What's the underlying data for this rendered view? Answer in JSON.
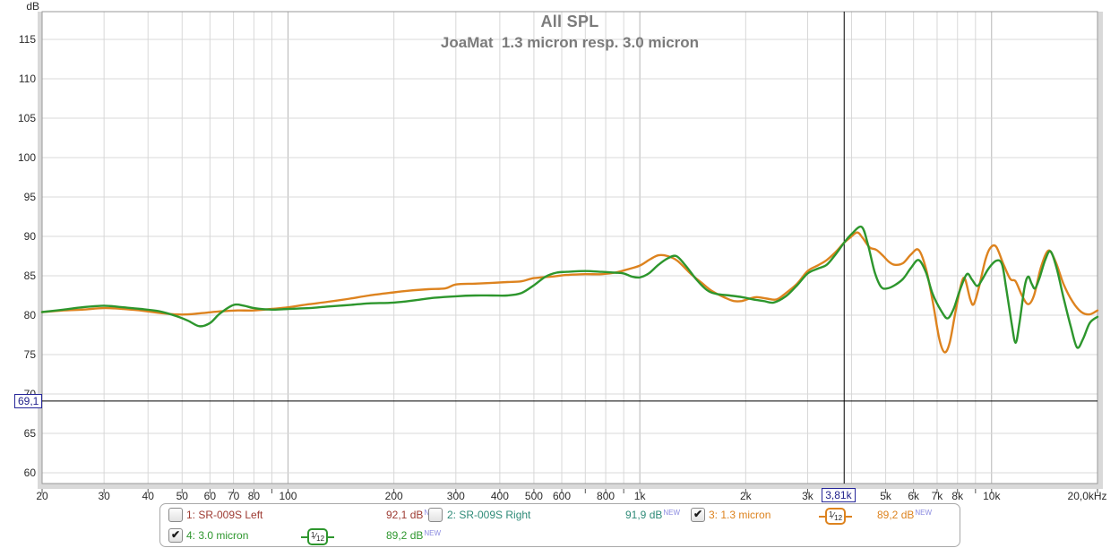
{
  "ui": {
    "check_glyph": "✔",
    "fraction_slash": "⁄"
  },
  "title": "All SPL",
  "subtitle": "JoaMat  1.3 micron resp. 3.0 micron",
  "y_axis_unit": "dB",
  "cursor_readout": {
    "freq_label": "3,81k",
    "db_label": "69,1"
  },
  "legend": {
    "items": [
      {
        "name": "1: SR-009S Left",
        "value": "92,1 dB",
        "flag": "NEW",
        "checked": false,
        "color": "#9d3a32"
      },
      {
        "name": "2: SR-009S Right",
        "value": "91,9 dB",
        "flag": "NEW",
        "checked": false,
        "color": "#2f8b78"
      },
      {
        "name": "3: 1.3 micron",
        "value": "89,2 dB",
        "flag": "NEW",
        "checked": true,
        "color": "#dd831f",
        "smooth_num": "1",
        "smooth_den": "12"
      },
      {
        "name": "4: 3.0 micron",
        "value": "89,2 dB",
        "flag": "NEW",
        "checked": true,
        "color": "#2d962d",
        "smooth_num": "1",
        "smooth_den": "12"
      }
    ]
  },
  "chart_data": {
    "type": "line",
    "title": "All SPL",
    "subtitle": "JoaMat  1.3 micron resp. 3.0 micron",
    "x_axis": {
      "scale": "log",
      "unit": "Hz",
      "min": 20,
      "max": 20000,
      "grid": [
        20,
        30,
        40,
        50,
        60,
        70,
        80,
        90,
        100,
        200,
        300,
        400,
        500,
        600,
        700,
        800,
        900,
        1000,
        2000,
        3000,
        4000,
        5000,
        6000,
        7000,
        8000,
        9000,
        10000,
        20000
      ],
      "ticks": [
        {
          "f": 20,
          "label": "20"
        },
        {
          "f": 30,
          "label": "30"
        },
        {
          "f": 40,
          "label": "40"
        },
        {
          "f": 50,
          "label": "50"
        },
        {
          "f": 60,
          "label": "60"
        },
        {
          "f": 70,
          "label": "70"
        },
        {
          "f": 80,
          "label": "80"
        },
        {
          "f": 100,
          "label": "100"
        },
        {
          "f": 200,
          "label": "200"
        },
        {
          "f": 300,
          "label": "300"
        },
        {
          "f": 400,
          "label": "400"
        },
        {
          "f": 500,
          "label": "500"
        },
        {
          "f": 600,
          "label": "600"
        },
        {
          "f": 800,
          "label": "800"
        },
        {
          "f": 1000,
          "label": "1k"
        },
        {
          "f": 2000,
          "label": "2k"
        },
        {
          "f": 3000,
          "label": "3k"
        },
        {
          "f": 5000,
          "label": "5k"
        },
        {
          "f": 6000,
          "label": "6k"
        },
        {
          "f": 7000,
          "label": "7k"
        },
        {
          "f": 8000,
          "label": "8k"
        },
        {
          "f": 10000,
          "label": "10k"
        },
        {
          "f": 20000,
          "label": "20,0kHz",
          "align": "end"
        }
      ]
    },
    "y_axis": {
      "label": "dB",
      "min": 60,
      "max": 115,
      "step": 5,
      "ticks": [
        115,
        110,
        105,
        100,
        95,
        90,
        85,
        80,
        75,
        70,
        65,
        60
      ],
      "grid": true
    },
    "cursor": {
      "freq": 3810,
      "freq_label": "3,81k",
      "db": 69.1,
      "db_label": "69,1"
    },
    "legend_position": "bottom",
    "hidden_series": [
      {
        "name": "1: SR-009S Left",
        "level": "92,1 dB",
        "checked": false
      },
      {
        "name": "2: SR-009S Right",
        "level": "91,9 dB",
        "checked": false
      }
    ],
    "series": [
      {
        "name": "3: 1.3 micron",
        "color": "#dd831f",
        "smoothing": "1/12",
        "level": "89,2 dB",
        "points": [
          [
            20,
            80.4
          ],
          [
            23,
            80.6
          ],
          [
            26,
            80.7
          ],
          [
            30,
            80.9
          ],
          [
            34,
            80.8
          ],
          [
            38,
            80.6
          ],
          [
            43,
            80.3
          ],
          [
            48,
            80.1
          ],
          [
            52,
            80.1
          ],
          [
            58,
            80.3
          ],
          [
            65,
            80.5
          ],
          [
            72,
            80.6
          ],
          [
            80,
            80.6
          ],
          [
            90,
            80.8
          ],
          [
            100,
            81.0
          ],
          [
            115,
            81.4
          ],
          [
            130,
            81.7
          ],
          [
            150,
            82.1
          ],
          [
            170,
            82.5
          ],
          [
            200,
            82.9
          ],
          [
            220,
            83.1
          ],
          [
            250,
            83.3
          ],
          [
            280,
            83.4
          ],
          [
            300,
            83.9
          ],
          [
            340,
            84.0
          ],
          [
            380,
            84.1
          ],
          [
            420,
            84.2
          ],
          [
            460,
            84.3
          ],
          [
            500,
            84.7
          ],
          [
            560,
            84.9
          ],
          [
            620,
            85.1
          ],
          [
            700,
            85.2
          ],
          [
            780,
            85.2
          ],
          [
            850,
            85.4
          ],
          [
            920,
            85.8
          ],
          [
            1000,
            86.3
          ],
          [
            1070,
            87.1
          ],
          [
            1130,
            87.6
          ],
          [
            1200,
            87.5
          ],
          [
            1280,
            86.9
          ],
          [
            1400,
            85.2
          ],
          [
            1500,
            84.1
          ],
          [
            1600,
            83.1
          ],
          [
            1750,
            82.2
          ],
          [
            1850,
            81.8
          ],
          [
            1950,
            81.8
          ],
          [
            2050,
            82.1
          ],
          [
            2150,
            82.3
          ],
          [
            2300,
            82.1
          ],
          [
            2450,
            82.0
          ],
          [
            2600,
            82.8
          ],
          [
            2800,
            84.0
          ],
          [
            3000,
            85.6
          ],
          [
            3200,
            86.3
          ],
          [
            3400,
            87.0
          ],
          [
            3600,
            88.0
          ],
          [
            3810,
            89.2
          ],
          [
            3950,
            89.8
          ],
          [
            4150,
            90.5
          ],
          [
            4300,
            89.8
          ],
          [
            4500,
            88.6
          ],
          [
            4700,
            88.3
          ],
          [
            4900,
            87.6
          ],
          [
            5100,
            86.8
          ],
          [
            5300,
            86.4
          ],
          [
            5600,
            86.6
          ],
          [
            5900,
            87.7
          ],
          [
            6200,
            88.3
          ],
          [
            6500,
            86.0
          ],
          [
            6800,
            81.8
          ],
          [
            7100,
            77.0
          ],
          [
            7350,
            75.3
          ],
          [
            7600,
            76.5
          ],
          [
            7900,
            80.5
          ],
          [
            8200,
            84.0
          ],
          [
            8400,
            84.6
          ],
          [
            8700,
            82.0
          ],
          [
            8900,
            81.4
          ],
          [
            9200,
            83.5
          ],
          [
            9600,
            87.0
          ],
          [
            9900,
            88.5
          ],
          [
            10300,
            88.7
          ],
          [
            10800,
            86.5
          ],
          [
            11300,
            84.6
          ],
          [
            11700,
            84.3
          ],
          [
            12200,
            82.5
          ],
          [
            12700,
            81.4
          ],
          [
            13200,
            82.5
          ],
          [
            13800,
            86.0
          ],
          [
            14500,
            88.2
          ],
          [
            15200,
            86.8
          ],
          [
            16000,
            84.0
          ],
          [
            17000,
            81.7
          ],
          [
            18000,
            80.4
          ],
          [
            19000,
            80.1
          ],
          [
            20000,
            80.6
          ]
        ]
      },
      {
        "name": "4: 3.0 micron",
        "color": "#2d962d",
        "smoothing": "1/12",
        "level": "89,2 dB",
        "points": [
          [
            20,
            80.4
          ],
          [
            23,
            80.7
          ],
          [
            26,
            81.0
          ],
          [
            30,
            81.2
          ],
          [
            34,
            81.0
          ],
          [
            38,
            80.8
          ],
          [
            43,
            80.5
          ],
          [
            48,
            79.9
          ],
          [
            52,
            79.3
          ],
          [
            56,
            78.6
          ],
          [
            60,
            79.0
          ],
          [
            64,
            80.2
          ],
          [
            70,
            81.3
          ],
          [
            75,
            81.2
          ],
          [
            80,
            80.9
          ],
          [
            90,
            80.7
          ],
          [
            100,
            80.8
          ],
          [
            115,
            80.9
          ],
          [
            130,
            81.1
          ],
          [
            150,
            81.3
          ],
          [
            170,
            81.5
          ],
          [
            200,
            81.6
          ],
          [
            230,
            81.9
          ],
          [
            260,
            82.2
          ],
          [
            300,
            82.4
          ],
          [
            340,
            82.5
          ],
          [
            380,
            82.5
          ],
          [
            420,
            82.5
          ],
          [
            460,
            82.8
          ],
          [
            500,
            83.8
          ],
          [
            540,
            84.9
          ],
          [
            580,
            85.4
          ],
          [
            620,
            85.5
          ],
          [
            700,
            85.6
          ],
          [
            780,
            85.5
          ],
          [
            850,
            85.4
          ],
          [
            900,
            85.3
          ],
          [
            950,
            84.9
          ],
          [
            1000,
            84.8
          ],
          [
            1060,
            85.3
          ],
          [
            1130,
            86.4
          ],
          [
            1200,
            87.2
          ],
          [
            1270,
            87.5
          ],
          [
            1350,
            86.3
          ],
          [
            1450,
            84.5
          ],
          [
            1550,
            83.2
          ],
          [
            1650,
            82.7
          ],
          [
            1800,
            82.5
          ],
          [
            1950,
            82.3
          ],
          [
            2100,
            82.0
          ],
          [
            2250,
            81.8
          ],
          [
            2400,
            81.6
          ],
          [
            2600,
            82.4
          ],
          [
            2800,
            83.8
          ],
          [
            3000,
            85.3
          ],
          [
            3200,
            85.9
          ],
          [
            3400,
            86.4
          ],
          [
            3600,
            87.7
          ],
          [
            3810,
            89.2
          ],
          [
            4000,
            90.3
          ],
          [
            4270,
            91.2
          ],
          [
            4450,
            89.0
          ],
          [
            4650,
            85.5
          ],
          [
            4850,
            83.6
          ],
          [
            5050,
            83.4
          ],
          [
            5300,
            83.8
          ],
          [
            5600,
            84.6
          ],
          [
            5900,
            86.0
          ],
          [
            6200,
            87.0
          ],
          [
            6500,
            85.5
          ],
          [
            6800,
            82.7
          ],
          [
            7200,
            80.5
          ],
          [
            7500,
            79.6
          ],
          [
            7800,
            80.8
          ],
          [
            8100,
            83.0
          ],
          [
            8500,
            85.2
          ],
          [
            8800,
            84.5
          ],
          [
            9100,
            83.7
          ],
          [
            9400,
            84.5
          ],
          [
            9800,
            85.9
          ],
          [
            10300,
            86.9
          ],
          [
            10700,
            86.5
          ],
          [
            11000,
            83.5
          ],
          [
            11400,
            79.0
          ],
          [
            11700,
            76.5
          ],
          [
            12000,
            79.0
          ],
          [
            12400,
            83.5
          ],
          [
            12700,
            84.9
          ],
          [
            13000,
            84.0
          ],
          [
            13300,
            83.4
          ],
          [
            13700,
            84.8
          ],
          [
            14200,
            87.0
          ],
          [
            14700,
            88.1
          ],
          [
            15300,
            86.0
          ],
          [
            16000,
            82.3
          ],
          [
            16800,
            78.5
          ],
          [
            17500,
            75.9
          ],
          [
            18200,
            77.0
          ],
          [
            19000,
            79.0
          ],
          [
            20000,
            79.8
          ]
        ]
      }
    ]
  }
}
